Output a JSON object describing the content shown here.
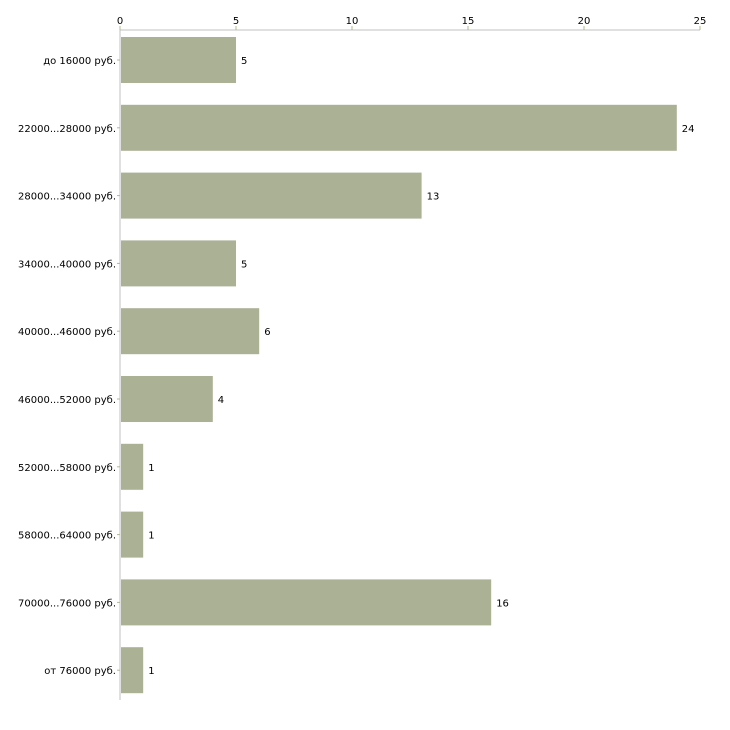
{
  "chart_data": {
    "type": "bar",
    "orientation": "horizontal",
    "title": "",
    "xlabel": "",
    "ylabel": "",
    "categories": [
      "до 16000 руб.",
      "22000...28000 руб.",
      "28000...34000 руб.",
      "34000...40000 руб.",
      "40000...46000 руб.",
      "46000...52000 руб.",
      "52000...58000 руб.",
      "58000...64000 руб.",
      "70000...76000 руб.",
      "от 76000 руб."
    ],
    "values": [
      5,
      24,
      13,
      5,
      6,
      4,
      1,
      1,
      16,
      1
    ],
    "xlim": [
      0,
      25
    ],
    "xticks": [
      0,
      5,
      10,
      15,
      20,
      25
    ],
    "grid": false,
    "legend": "none",
    "colors": {
      "bar": "#abb195",
      "axis": "#c0c0c0",
      "tick": "#b5b98f"
    }
  }
}
